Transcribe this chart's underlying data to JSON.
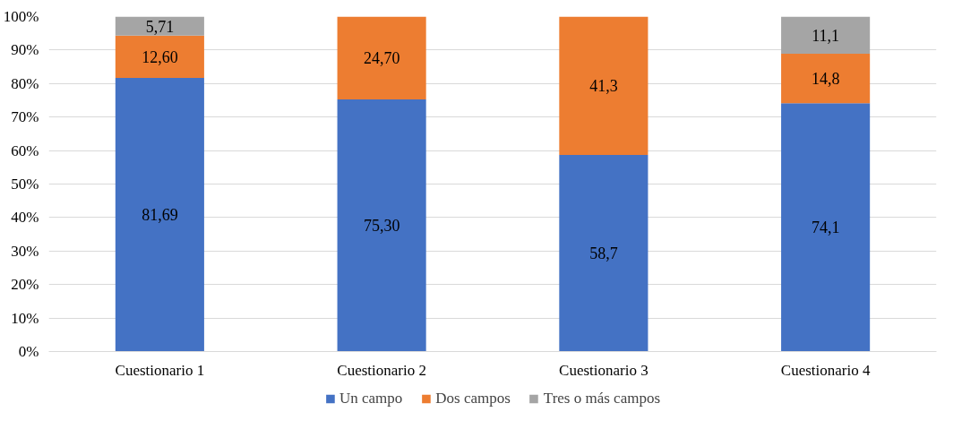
{
  "chart_data": {
    "type": "bar",
    "stacked": true,
    "categories": [
      "Cuestionario 1",
      "Cuestionario 2",
      "Cuestionario 3",
      "Cuestionario 4"
    ],
    "series": [
      {
        "name": "Un campo",
        "color": "#4472c4",
        "values": [
          81.69,
          75.3,
          58.7,
          74.1
        ],
        "value_labels": [
          "81,69",
          "75,30",
          "58,7",
          "74,1"
        ]
      },
      {
        "name": "Dos campos",
        "color": "#ed7d31",
        "values": [
          12.6,
          24.7,
          41.3,
          14.8
        ],
        "value_labels": [
          "12,60",
          "24,70",
          "41,3",
          "14,8"
        ]
      },
      {
        "name": "Tres o más campos",
        "color": "#a5a5a5",
        "values": [
          5.71,
          null,
          null,
          11.1
        ],
        "value_labels": [
          "5,71",
          null,
          null,
          "11,1"
        ]
      }
    ],
    "ylim": [
      0,
      100
    ],
    "yticks": [
      {
        "value": 0,
        "label": "0%"
      },
      {
        "value": 10,
        "label": "10%"
      },
      {
        "value": 20,
        "label": "20%"
      },
      {
        "value": 30,
        "label": "30%"
      },
      {
        "value": 40,
        "label": "40%"
      },
      {
        "value": 50,
        "label": "50%"
      },
      {
        "value": 60,
        "label": "60%"
      },
      {
        "value": 70,
        "label": "70%"
      },
      {
        "value": 80,
        "label": "80%"
      },
      {
        "value": 90,
        "label": "90%"
      },
      {
        "value": 100,
        "label": "100%"
      }
    ],
    "grid": "y",
    "legend": "bottom"
  }
}
